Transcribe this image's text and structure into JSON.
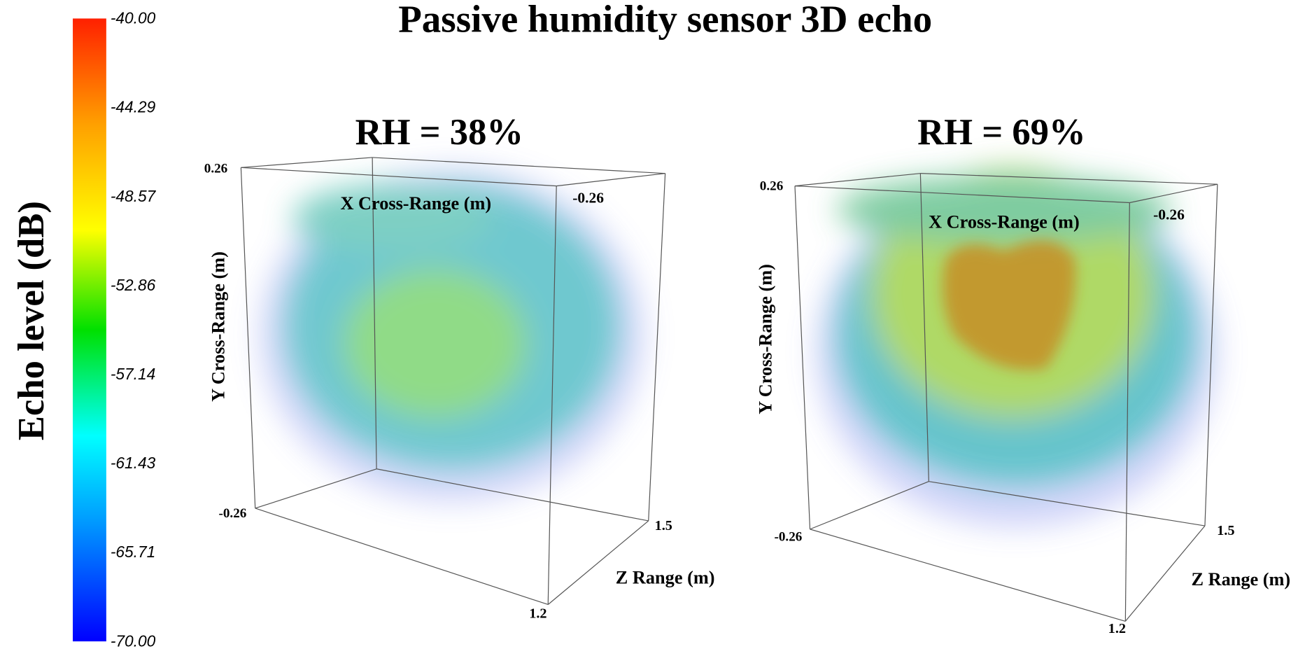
{
  "title": "Passive humidity sensor 3D echo",
  "colorbar": {
    "label": "Echo level (dB)",
    "ticks": [
      "-40.00",
      "-44.29",
      "-48.57",
      "-52.86",
      "-57.14",
      "-61.43",
      "-65.71",
      "-70.00"
    ]
  },
  "panels": [
    {
      "title": "RH = 38%",
      "y_top": "0.26",
      "y_bottom": "-0.26",
      "x_label": "X Cross-Range (m)",
      "x_end": "-0.26",
      "y_label": "Y Cross-Range (m)",
      "z_label": "Z Range (m)",
      "z_start": "1.2",
      "z_end": "1.5"
    },
    {
      "title": "RH = 69%",
      "y_top": "0.26",
      "y_bottom": "-0.26",
      "x_label": "X Cross-Range (m)",
      "x_end": "-0.26",
      "y_label": "Y Cross-Range (m)",
      "z_label": "Z Range (m)",
      "z_start": "1.2",
      "z_end": "1.5"
    }
  ]
}
